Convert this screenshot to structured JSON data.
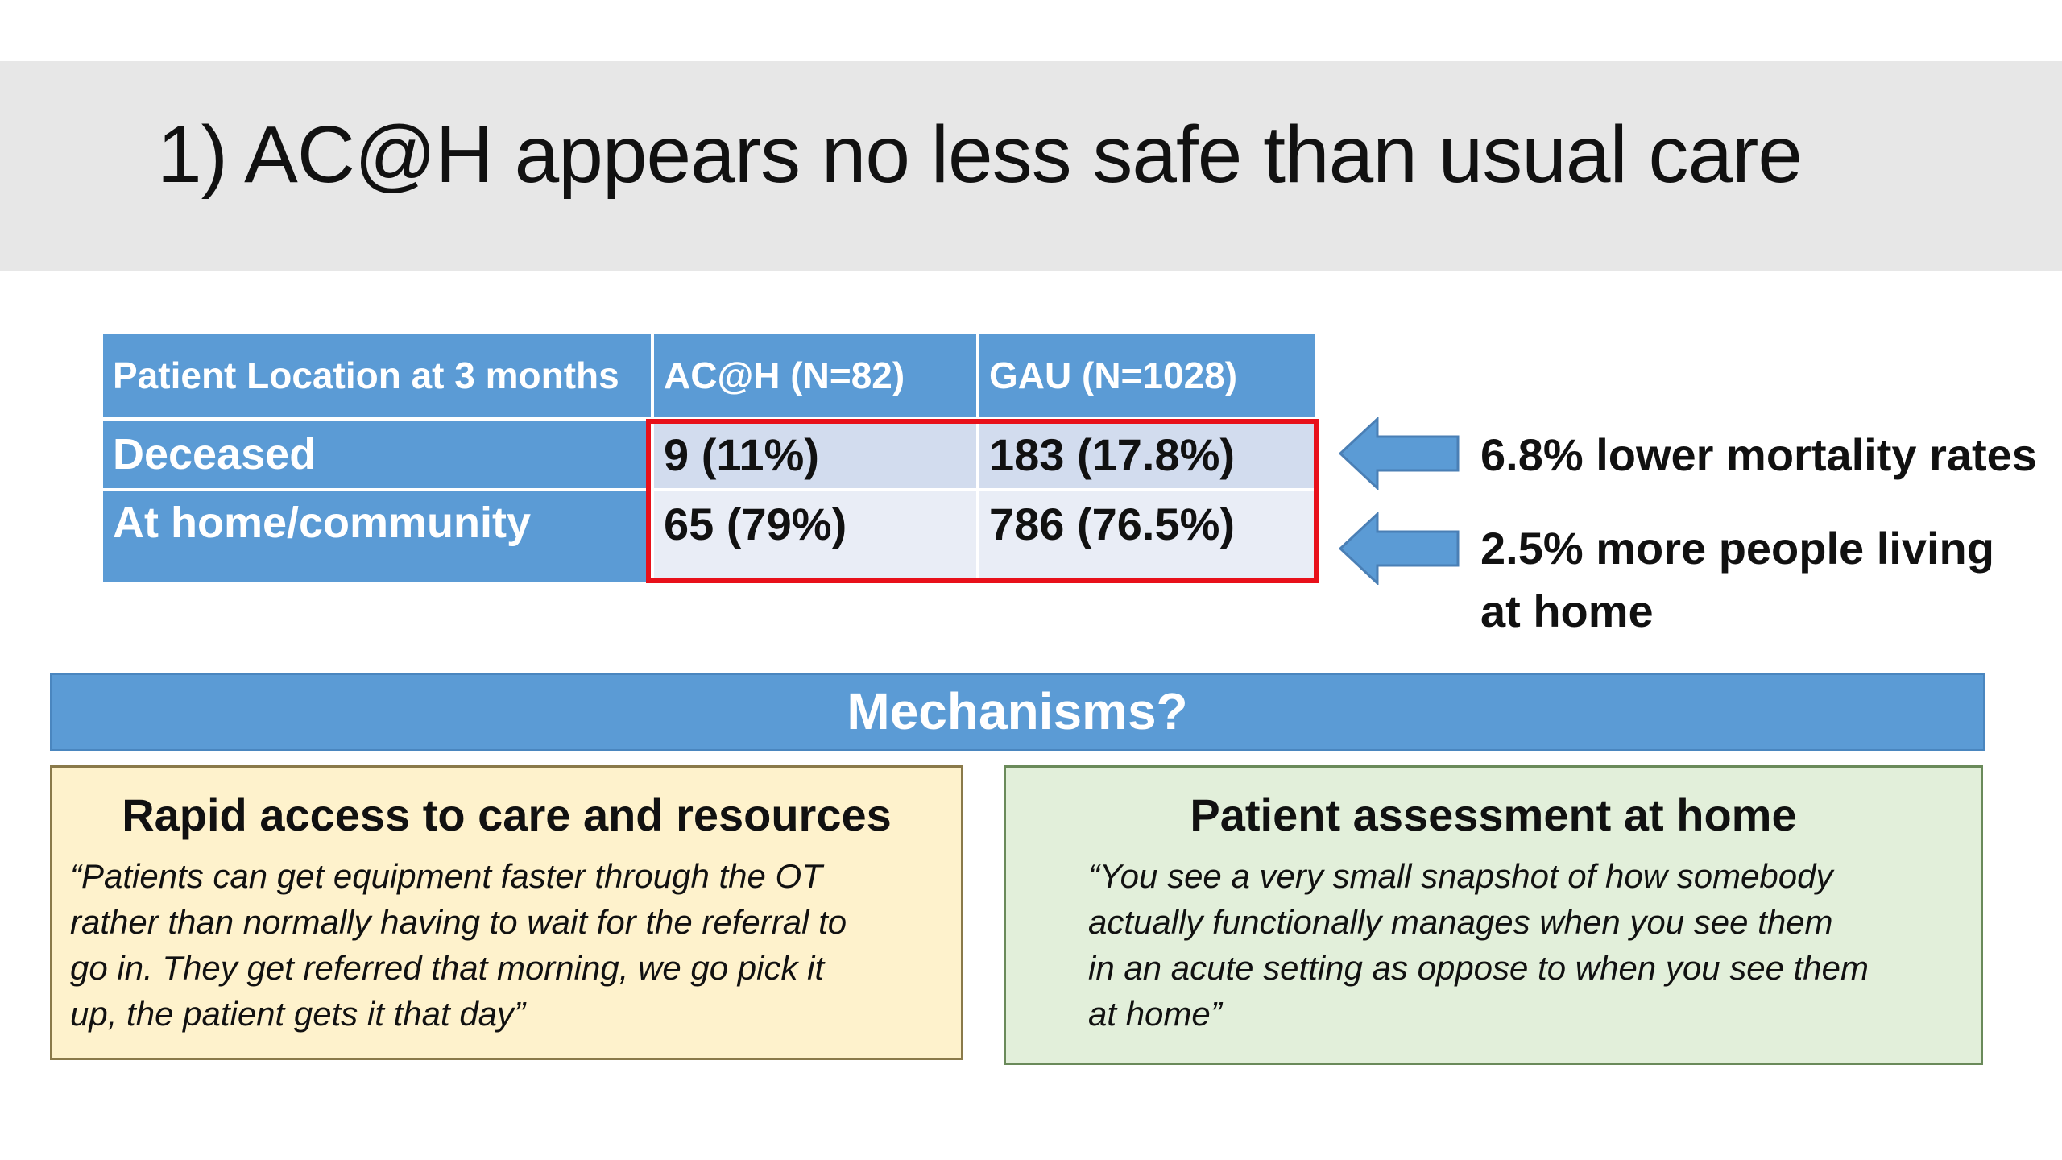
{
  "slide": {
    "title": "1) AC@H appears no less safe than usual care"
  },
  "table": {
    "headers": [
      "Patient Location at 3 months",
      "AC@H (N=82)",
      "GAU  (N=1028)"
    ],
    "rows": [
      {
        "label": "Deceased",
        "ach": "9 (11%)",
        "gau": "183 (17.8%)"
      },
      {
        "label": "At home/community",
        "ach": "65 (79%)",
        "gau": "786 (76.5%)"
      }
    ]
  },
  "notes": {
    "mortality": "6.8% lower mortality rates",
    "home_line1": "2.5% more people living",
    "home_line2": "at home"
  },
  "mechanisms": {
    "heading": "Mechanisms?",
    "left": {
      "title": "Rapid access to care and resources",
      "quote_lines": [
        "“Patients can get equipment faster through the OT",
        "rather than normally having to wait for the referral to",
        "go in. They get referred that morning, we go pick it",
        "up, the patient gets it that day”"
      ]
    },
    "right": {
      "title": "Patient assessment at home",
      "quote_lines": [
        "“You see a very small snapshot of how somebody",
        "actually functionally manages when you see them",
        "in an acute setting as oppose to when you see them",
        "at home”"
      ]
    }
  },
  "colors": {
    "header_blue": "#5b9bd5",
    "highlight_red": "#e8101a",
    "left_box_bg": "#fef2cc",
    "right_box_bg": "#e2efda"
  }
}
